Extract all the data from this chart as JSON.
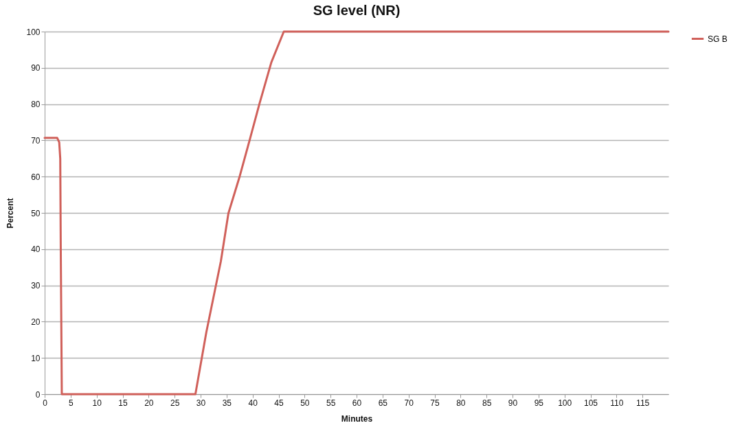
{
  "chart_data": {
    "type": "line",
    "title": "SG level (NR)",
    "xlabel": "Minutes",
    "ylabel": "Percent",
    "xlim": [
      0,
      120
    ],
    "xticks": [
      0,
      5,
      10,
      15,
      20,
      25,
      30,
      35,
      40,
      45,
      50,
      55,
      60,
      65,
      70,
      75,
      80,
      85,
      90,
      95,
      100,
      105,
      110,
      115
    ],
    "ylim": [
      0,
      100
    ],
    "yticks": [
      0,
      10,
      20,
      30,
      40,
      50,
      60,
      70,
      80,
      90,
      100
    ],
    "grid": "y",
    "legend": "right",
    "marker": "none",
    "line_style": "solid",
    "series": [
      {
        "name": "SG B",
        "color": "#d0605a",
        "x": [
          0,
          2.4,
          2.8,
          3.0,
          3.1,
          3.2,
          3.3,
          29.0,
          31.1,
          33.9,
          35.35,
          37.5,
          39.4,
          41.3,
          43.6,
          46.0,
          120
        ],
        "values": [
          70.7,
          70.7,
          69.5,
          65,
          40,
          20,
          0,
          0,
          17.1,
          36.7,
          49.9,
          60.0,
          69.9,
          80.0,
          91.5,
          100,
          100
        ]
      }
    ]
  }
}
